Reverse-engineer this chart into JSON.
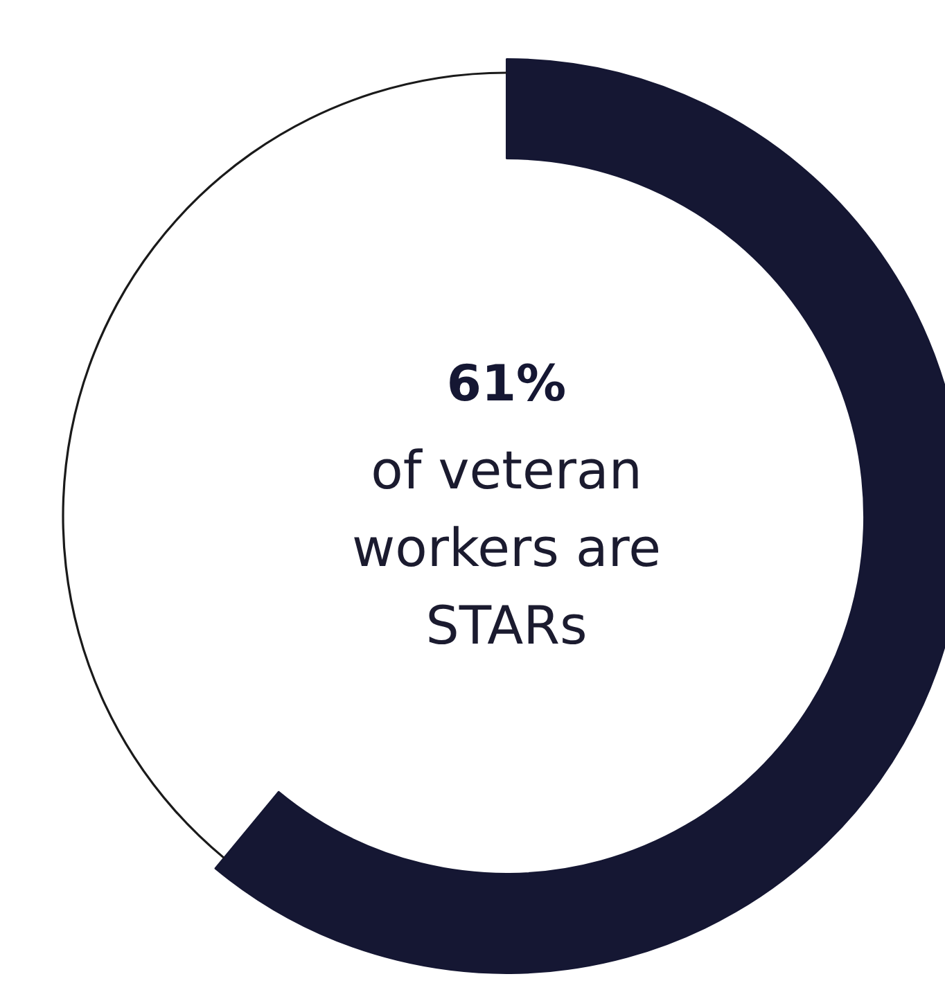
{
  "chart_data": {
    "type": "donut",
    "categories": [
      null,
      null
    ],
    "values": [
      61,
      39
    ],
    "colors": [
      "#151733",
      "#1a1a1a"
    ],
    "value_labels": [
      "61%",
      null
    ],
    "annotations": [
      "of veteran\nworkers are\nSTARs"
    ]
  }
}
